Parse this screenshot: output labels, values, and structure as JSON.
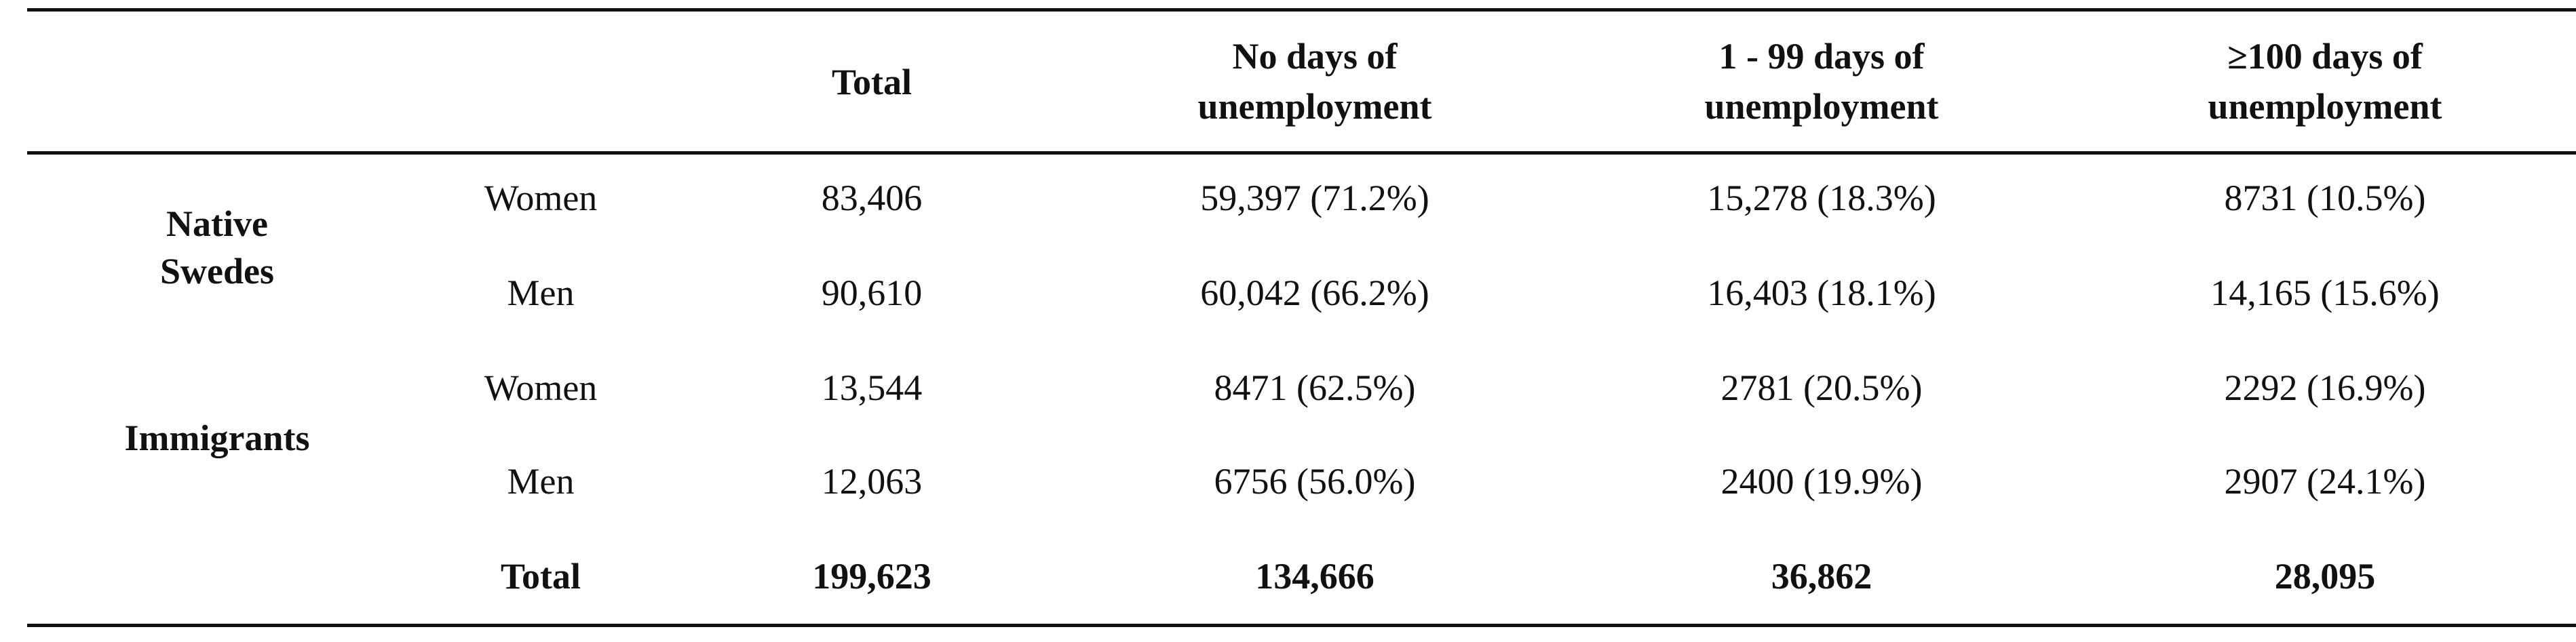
{
  "table": {
    "headers": {
      "total": "Total",
      "no_days_line1": "No days of",
      "no_days_line2": "unemployment",
      "days_1_99_line1": "1 - 99 days of",
      "days_1_99_line2": "unemployment",
      "days_100_line1": "≥100 days of",
      "days_100_line2": "unemployment"
    },
    "groups": {
      "native_line1": "Native",
      "native_line2": "Swedes",
      "immigrants": "Immigrants"
    },
    "rows": [
      {
        "sex": "Women",
        "total": "83,406",
        "no_days": "59,397 (71.2%)",
        "days_1_99": "15,278 (18.3%)",
        "days_100": "8731 (10.5%)"
      },
      {
        "sex": "Men",
        "total": "90,610",
        "no_days": "60,042 (66.2%)",
        "days_1_99": "16,403 (18.1%)",
        "days_100": "14,165 (15.6%)"
      },
      {
        "sex": "Women",
        "total": "13,544",
        "no_days": "8471 (62.5%)",
        "days_1_99": "2781 (20.5%)",
        "days_100": "2292 (16.9%)"
      },
      {
        "sex": "Men",
        "total": "12,063",
        "no_days": "6756 (56.0%)",
        "days_1_99": "2400 (19.9%)",
        "days_100": "2907 (24.1%)"
      }
    ],
    "total_row": {
      "label": "Total",
      "total": "199,623",
      "no_days": "134,666",
      "days_1_99": "36,862",
      "days_100": "28,095"
    }
  }
}
